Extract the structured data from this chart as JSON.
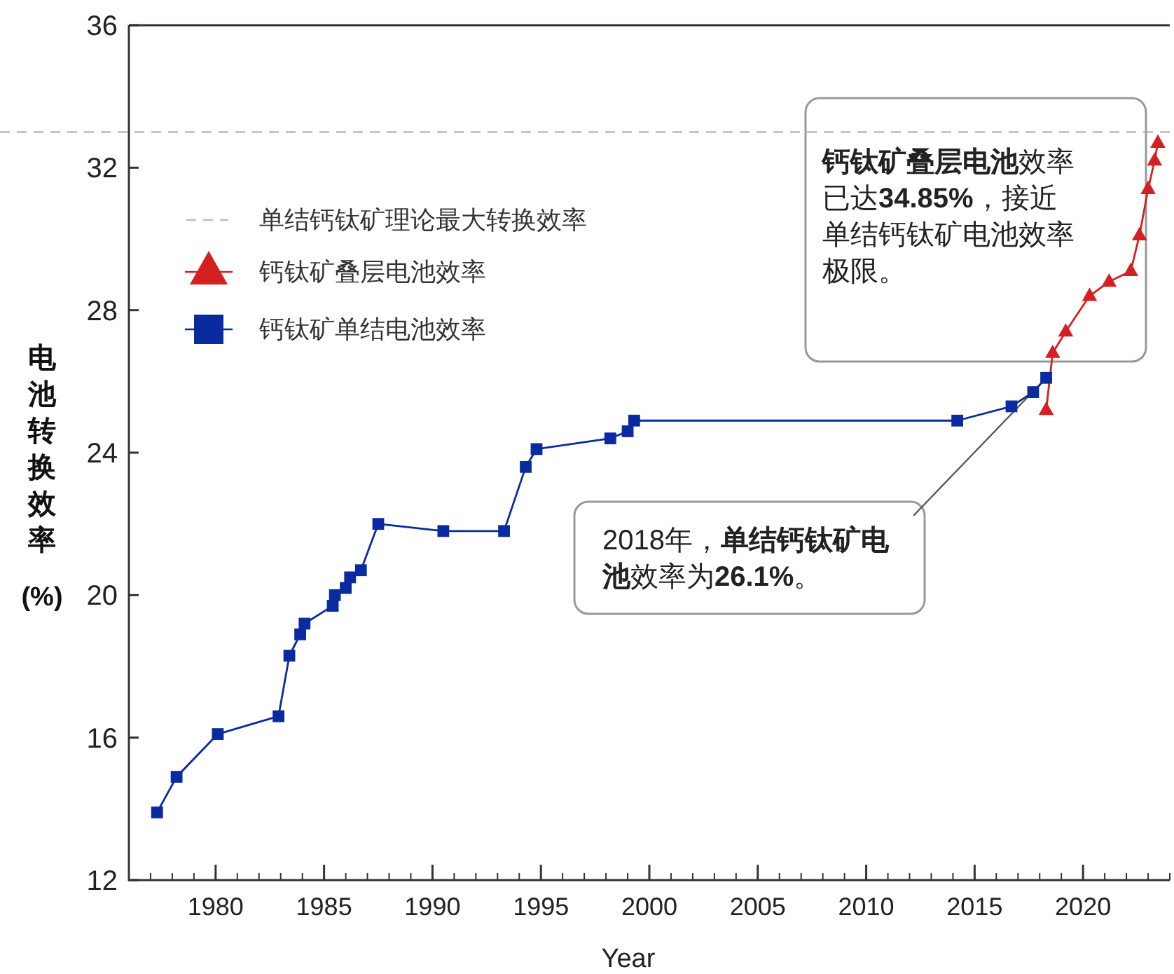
{
  "chart_data": {
    "type": "line",
    "xlabel": "Year",
    "ylabel": "电池转换效率(%)",
    "xlim": [
      1976,
      2024
    ],
    "ylim": [
      12,
      36
    ],
    "xticks": [
      1980,
      1985,
      1990,
      1995,
      2000,
      2005,
      2010,
      2015,
      2020
    ],
    "yticks": [
      12,
      16,
      20,
      24,
      28,
      32,
      36
    ],
    "legend": "top left",
    "grid": false,
    "series": [
      {
        "name": "钙钛矿叠层电池效率",
        "color": "#d42020",
        "marker": "triangle",
        "x": [
          2018.3,
          2018.6,
          2019.2,
          2020.3,
          2021.2,
          2022.2,
          2022.6,
          2023.0,
          2023.3,
          2023.45
        ],
        "values": [
          25.2,
          26.8,
          27.4,
          28.4,
          28.8,
          29.1,
          30.1,
          31.4,
          32.2,
          32.7
        ]
      },
      {
        "name": "钙钛矿单结电池效率",
        "color": "#0a2aa0",
        "marker": "square",
        "x": [
          1977.3,
          1978.2,
          1980.1,
          1982.9,
          1983.4,
          1983.9,
          1984.1,
          1985.4,
          1985.5,
          1986.0,
          1986.2,
          1986.7,
          1987.5,
          1990.5,
          1993.3,
          1994.3,
          1994.8,
          1998.2,
          1999.0,
          1999.3,
          2014.2,
          2016.7,
          2017.7,
          2018.3
        ],
        "values": [
          13.9,
          14.9,
          16.1,
          16.6,
          18.3,
          18.9,
          19.2,
          19.7,
          20.0,
          20.2,
          20.5,
          20.7,
          22.0,
          21.8,
          21.8,
          23.6,
          24.1,
          24.4,
          24.6,
          24.9,
          24.9,
          25.3,
          25.7,
          26.1
        ]
      }
    ],
    "ref_lines": [
      {
        "axis": "y",
        "value": 33,
        "label": "单结钙钛矿理论最大转换效率",
        "color": "#bbbbbb",
        "line_style": "dashed"
      }
    ],
    "annotations": [
      "**钙钛矿叠层电池**效率已达**34.85%**，接近单结钙钛矿电池效率极限。",
      "2018年，**单结钙钛矿电池**效率为**26.1%**。"
    ]
  }
}
